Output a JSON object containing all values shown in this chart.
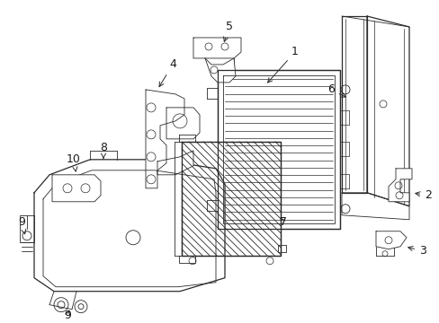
{
  "bg_color": "#ffffff",
  "line_color": "#2a2a2a",
  "text_color": "#1a1a1a",
  "fig_width": 4.89,
  "fig_height": 3.6,
  "dpi": 100
}
